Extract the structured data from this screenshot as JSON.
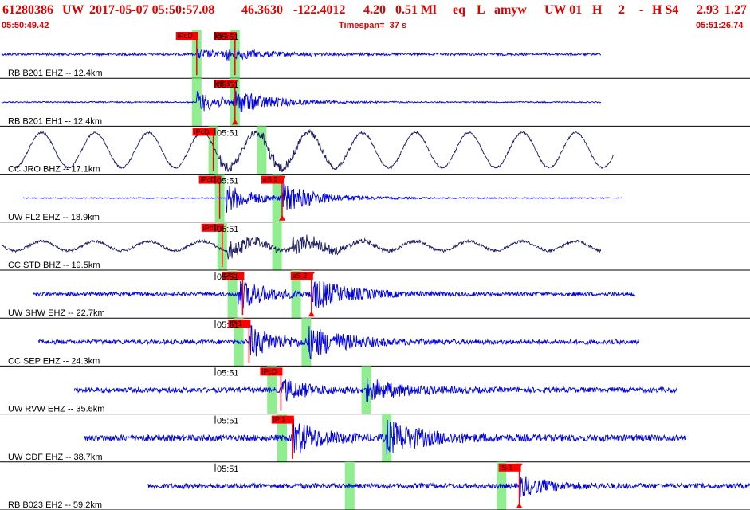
{
  "header": {
    "event_id": "61280386",
    "network": "UW",
    "datetime": "2017-05-07 05:50:57.08",
    "latitude": "46.3630",
    "longitude": "-122.4012",
    "depth": "4.20",
    "magnitude": "0.51 Ml",
    "event_type": "eq",
    "location_flag": "L",
    "author": "amyw",
    "source": "UW 01",
    "quality": "H",
    "count": "2",
    "dash": "-",
    "status": "H S4",
    "rms": "2.93",
    "gap": "1.27"
  },
  "time_start": "05:50:49.42",
  "timespan": "Timespan=  37 s",
  "time_end": "05:51:26.74",
  "colors": {
    "header_text": "#e00000",
    "trace_blue": "#0000e0",
    "trace_dark": "#1a1a60",
    "pick_red": "#ff0000",
    "window_green": "#90ee90"
  },
  "traces": [
    {
      "label": "RB B201 EHZ -- 12.4km",
      "tick_label": "05:51",
      "color": "blue",
      "start": 0,
      "end": 47,
      "p_time": 15.3,
      "s_time": 17.6,
      "amp": 6,
      "noise": 2,
      "low_freq": 0,
      "windows": [
        15.3,
        18.3
      ],
      "picks": [
        {
          "label": "iPcD",
          "time": 15.3,
          "triangle": false
        },
        {
          "label": "iS 1",
          "time": 18.3,
          "triangle": false
        }
      ]
    },
    {
      "label": "RB B201 EH1 -- 12.4km",
      "tick_label": "05:51",
      "color": "blue",
      "start": 0,
      "end": 47,
      "p_time": 15.3,
      "s_time": 18.3,
      "amp": 14,
      "noise": 1,
      "low_freq": 0,
      "windows": [
        15.3,
        18.3
      ],
      "picks": [
        {
          "label": "eS 1",
          "time": 18.3,
          "triangle": true
        }
      ]
    },
    {
      "label": "CC JRO BHZ -- 17.1km",
      "tick_label": "05:51",
      "color": "dark",
      "start": 1,
      "end": 48,
      "p_time": 17.0,
      "s_time": 20.4,
      "amp": 8,
      "noise": 1.5,
      "low_freq": 22,
      "windows": [
        16.6,
        20.4
      ],
      "picks": [
        {
          "label": "iPcD",
          "time": 16.6,
          "triangle": false
        }
      ]
    },
    {
      "label": "UW FL2 EHZ -- 18.9km",
      "tick_label": "05:51",
      "color": "blue",
      "start": 1.6,
      "end": 48.7,
      "p_time": 17.6,
      "s_time": 22.0,
      "amp": 18,
      "noise": 0.8,
      "low_freq": 0,
      "windows": [
        17.1,
        21.6
      ],
      "picks": [
        {
          "label": "iPcD",
          "time": 17.1,
          "triangle": false
        },
        {
          "label": "eS 2",
          "time": 22.0,
          "triangle": true
        }
      ]
    },
    {
      "label": "CC STD BHZ -- 19.5km",
      "tick_label": "05:51",
      "color": "dark",
      "start": 0,
      "end": 47,
      "p_time": 17.7,
      "s_time": 22.8,
      "amp": 12,
      "noise": 2,
      "low_freq": 6,
      "windows": [
        17.3,
        21.6
      ],
      "picks": [
        {
          "label": "iPcD",
          "time": 17.3,
          "triangle": false
        }
      ]
    },
    {
      "label": "UW SHW EHZ -- 22.7km",
      "tick_label": "05:51",
      "color": "blue",
      "start": 2.5,
      "end": 49.7,
      "p_time": 18.5,
      "s_time": 24.3,
      "amp": 20,
      "noise": 3,
      "low_freq": 0,
      "windows": [
        18.1,
        23.1
      ],
      "picks": [
        {
          "label": "iP 1",
          "time": 18.9,
          "triangle": false
        },
        {
          "label": "eS 2",
          "time": 24.3,
          "triangle": true
        }
      ]
    },
    {
      "label": "CC SEP EHZ -- 24.3km",
      "tick_label": "05:51",
      "color": "blue",
      "start": 2.9,
      "end": 50.0,
      "p_time": 19.4,
      "s_time": 24.0,
      "amp": 20,
      "noise": 3.5,
      "low_freq": 0,
      "windows": [
        18.6,
        23.9
      ],
      "picks": [
        {
          "label": "iP 1",
          "time": 19.4,
          "triangle": false
        }
      ]
    },
    {
      "label": "UW RVW EHZ -- 35.6km",
      "tick_label": "05:51",
      "color": "blue",
      "start": 5.7,
      "end": 53.0,
      "p_time": 21.9,
      "s_time": 28.6,
      "amp": 14,
      "noise": 4,
      "low_freq": 0,
      "windows": [
        21.2,
        28.6
      ],
      "picks": [
        {
          "label": "iPcD",
          "time": 21.9,
          "triangle": false
        }
      ]
    },
    {
      "label": "UW CDF EHZ -- 38.7km",
      "tick_label": "05:51",
      "color": "blue",
      "start": 6.5,
      "end": 53.7,
      "p_time": 22.8,
      "s_time": 30.2,
      "amp": 22,
      "noise": 5,
      "low_freq": 0,
      "windows": [
        22.0,
        30.2
      ],
      "picks": [
        {
          "label": "iP 1",
          "time": 22.8,
          "triangle": false
        }
      ]
    },
    {
      "label": "RB B023 EH2 -- 59.2km",
      "tick_label": "05:51",
      "color": "blue",
      "start": 11.5,
      "end": 58.8,
      "p_time": 40.6,
      "s_time": 40.6,
      "amp": 12,
      "noise": 4,
      "low_freq": 0,
      "windows": [
        27.3,
        39.2
      ],
      "picks": [
        {
          "label": "iS 1",
          "time": 40.6,
          "triangle": true
        }
      ]
    }
  ]
}
